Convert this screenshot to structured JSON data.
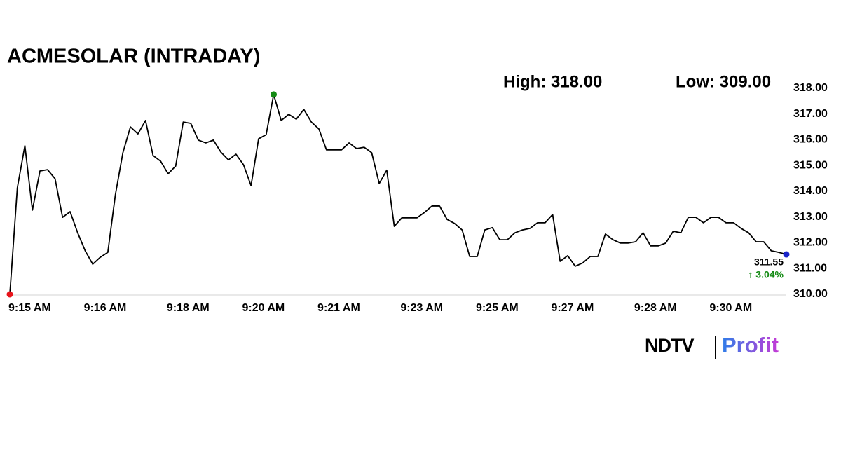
{
  "chart_data": {
    "type": "line",
    "title": "ACMESOLAR (INTRADAY)",
    "high_label": "High: 318.00",
    "low_label": "Low: 309.00",
    "last_label": "311.55",
    "change_label": "↑ 3.04%",
    "brand": {
      "name": "NDTV",
      "product": "Profit"
    },
    "color": "#000000",
    "start_color": "#e8141b",
    "high_color": "#138a13",
    "end_color": "#1a24c9",
    "change_color": "#138a13",
    "categories": [
      "9:15 AM",
      null,
      null,
      null,
      null,
      null,
      null,
      null,
      null,
      null,
      "9:16 AM",
      null,
      null,
      null,
      null,
      null,
      null,
      null,
      null,
      null,
      null,
      "9:18 AM",
      null,
      null,
      null,
      null,
      null,
      null,
      null,
      null,
      null,
      "9:20 AM",
      null,
      null,
      null,
      null,
      null,
      null,
      null,
      null,
      null,
      "9:21 AM",
      null,
      null,
      null,
      null,
      null,
      null,
      null,
      null,
      null,
      null,
      "9:23 AM",
      null,
      null,
      null,
      null,
      null,
      null,
      null,
      null,
      null,
      "9:25 AM",
      null,
      null,
      null,
      null,
      null,
      null,
      null,
      null,
      null,
      "9:27 AM",
      null,
      null,
      null,
      null,
      null,
      null,
      null,
      null,
      null,
      null,
      "9:28 AM",
      null,
      null,
      null,
      null,
      null,
      null,
      null,
      null,
      null,
      "9:30 AM",
      null,
      null,
      null,
      null,
      null,
      null,
      null,
      null,
      null,
      null
    ],
    "values": [
      310.0,
      314.14,
      315.77,
      313.27,
      314.79,
      314.84,
      314.49,
      312.99,
      313.21,
      312.39,
      311.69,
      311.17,
      311.44,
      311.63,
      313.86,
      315.5,
      316.5,
      316.23,
      316.75,
      315.39,
      315.17,
      314.68,
      314.98,
      316.69,
      316.64,
      315.99,
      315.88,
      315.99,
      315.52,
      315.22,
      315.44,
      315.03,
      314.22,
      316.04,
      316.2,
      317.76,
      316.75,
      316.99,
      316.8,
      317.18,
      316.69,
      316.42,
      315.61,
      315.61,
      315.61,
      315.88,
      315.66,
      315.71,
      315.5,
      314.3,
      314.82,
      312.64,
      312.97,
      312.97,
      312.97,
      313.18,
      313.43,
      313.43,
      312.91,
      312.75,
      312.5,
      311.47,
      311.47,
      312.5,
      312.59,
      312.12,
      312.12,
      312.39,
      312.5,
      312.56,
      312.78,
      312.78,
      313.1,
      311.28,
      311.5,
      311.09,
      311.22,
      311.47,
      311.47,
      312.34,
      312.12,
      311.99,
      311.99,
      312.04,
      312.39,
      311.88,
      311.88,
      311.99,
      312.45,
      312.39,
      312.99,
      312.99,
      312.78,
      312.99,
      312.99,
      312.78,
      312.78,
      312.56,
      312.39,
      312.04,
      312.04,
      311.69,
      311.63,
      311.55
    ],
    "ylim": [
      310,
      318
    ],
    "yticks": [
      {
        "value": 310,
        "label": "310.00"
      },
      {
        "value": 311,
        "label": "311.00"
      },
      {
        "value": 312,
        "label": "312.00"
      },
      {
        "value": 313,
        "label": "313.00"
      },
      {
        "value": 314,
        "label": "314.00"
      },
      {
        "value": 315,
        "label": "315.00"
      },
      {
        "value": 316,
        "label": "316.00"
      },
      {
        "value": 317,
        "label": "317.00"
      },
      {
        "value": 318,
        "label": "318.00"
      }
    ]
  }
}
